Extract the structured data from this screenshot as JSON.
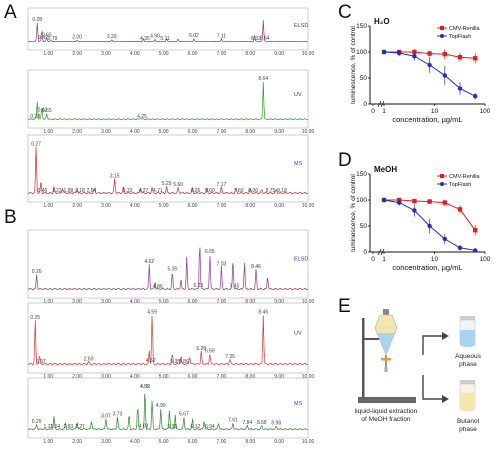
{
  "panels": {
    "A": "A",
    "B": "B",
    "C": "C",
    "D": "D",
    "E": "E"
  },
  "traces": {
    "A": [
      {
        "label": "ELSD",
        "color": "#8b3a8b",
        "peaks": [
          [
            0.62,
            0.8
          ],
          [
            0.78,
            0.45
          ],
          [
            0.95,
            0.15
          ],
          [
            1.1,
            0.05
          ],
          [
            2.0,
            0.06
          ],
          [
            3.2,
            0.08
          ],
          [
            4.3,
            0.1
          ],
          [
            4.7,
            0.1
          ],
          [
            5.1,
            0.12
          ],
          [
            5.5,
            0.1
          ],
          [
            6.05,
            0.12
          ],
          [
            7.0,
            0.1
          ],
          [
            8.15,
            0.25
          ],
          [
            8.45,
            0.9
          ]
        ],
        "peak_labels": [
          {
            "x": 0.62,
            "t": "0.28"
          },
          {
            "x": 0.82,
            "t": "0.42"
          },
          {
            "x": 0.95,
            "t": "0.65"
          },
          {
            "x": 1.15,
            "t": "0.79"
          },
          {
            "x": 2.0,
            "t": "2.00"
          },
          {
            "x": 3.2,
            "t": "3.33"
          },
          {
            "x": 4.35,
            "t": "4.35"
          },
          {
            "x": 4.7,
            "t": "4.90"
          },
          {
            "x": 5.05,
            "t": "5.11"
          },
          {
            "x": 6.05,
            "t": "6.02"
          },
          {
            "x": 7.0,
            "t": "7.11"
          },
          {
            "x": 8.2,
            "t": "8.32"
          },
          {
            "x": 8.5,
            "t": "8.64"
          }
        ]
      },
      {
        "label": "UV",
        "color": "#2e9b2e",
        "peaks": [
          [
            0.62,
            0.45
          ],
          [
            0.78,
            0.3
          ],
          [
            0.95,
            0.15
          ],
          [
            4.2,
            0.03
          ],
          [
            8.45,
            0.95
          ]
        ],
        "peak_labels": [
          {
            "x": 0.55,
            "t": "0.28"
          },
          {
            "x": 0.8,
            "t": "0.42"
          },
          {
            "x": 0.95,
            "t": "0.65"
          },
          {
            "x": 4.25,
            "t": "4.25"
          },
          {
            "x": 8.45,
            "t": "8.64"
          }
        ]
      },
      {
        "label": "MS",
        "color": "#cc2a2a",
        "peaks": [
          [
            0.58,
            0.95
          ],
          [
            0.75,
            0.25
          ],
          [
            1.2,
            0.12
          ],
          [
            1.5,
            0.1
          ],
          [
            2.0,
            0.1
          ],
          [
            2.6,
            0.1
          ],
          [
            3.3,
            0.3
          ],
          [
            3.6,
            0.12
          ],
          [
            4.2,
            0.12
          ],
          [
            4.6,
            0.12
          ],
          [
            5.1,
            0.14
          ],
          [
            5.5,
            0.12
          ],
          [
            6.0,
            0.1
          ],
          [
            6.5,
            0.1
          ],
          [
            7.0,
            0.12
          ],
          [
            7.5,
            0.1
          ],
          [
            8.0,
            0.1
          ],
          [
            8.4,
            0.08
          ],
          [
            8.9,
            0.08
          ]
        ],
        "peak_labels": [
          {
            "x": 0.58,
            "t": "0.27"
          },
          {
            "x": 0.8,
            "t": "0.46"
          },
          {
            "x": 1.3,
            "t": "1.23"
          },
          {
            "x": 1.7,
            "t": "1.88"
          },
          {
            "x": 2.1,
            "t": "2.18"
          },
          {
            "x": 2.5,
            "t": "2.54"
          },
          {
            "x": 3.3,
            "t": "3.15"
          },
          {
            "x": 3.75,
            "t": "3.33"
          },
          {
            "x": 4.3,
            "t": "4.27"
          },
          {
            "x": 4.8,
            "t": "4.71"
          },
          {
            "x": 5.1,
            "t": "5.29"
          },
          {
            "x": 5.5,
            "t": "5.60"
          },
          {
            "x": 6.1,
            "t": "6.26"
          },
          {
            "x": 6.6,
            "t": "6.60"
          },
          {
            "x": 7.0,
            "t": "7.17"
          },
          {
            "x": 7.6,
            "t": "7.60"
          },
          {
            "x": 8.1,
            "t": "8.06"
          },
          {
            "x": 8.7,
            "t": "8.75"
          },
          {
            "x": 9.1,
            "t": "9.18"
          }
        ]
      }
    ],
    "B": [
      {
        "label": "ELSD",
        "color": "#8b3a8b",
        "peaks": [
          [
            0.6,
            0.3
          ],
          [
            4.5,
            0.5
          ],
          [
            4.7,
            0.15
          ],
          [
            5.3,
            0.35
          ],
          [
            5.6,
            0.2
          ],
          [
            5.8,
            0.65
          ],
          [
            6.25,
            0.95
          ],
          [
            6.6,
            0.7
          ],
          [
            7.0,
            0.45
          ],
          [
            7.4,
            0.6
          ],
          [
            7.8,
            0.55
          ],
          [
            8.2,
            0.4
          ],
          [
            8.6,
            0.25
          ]
        ],
        "peak_labels": [
          {
            "x": 0.6,
            "t": "0.26"
          },
          {
            "x": 4.5,
            "t": "4.62"
          },
          {
            "x": 4.8,
            "t": "4.86"
          },
          {
            "x": 5.3,
            "t": "5.35"
          },
          {
            "x": 6.2,
            "t": "6.23"
          },
          {
            "x": 6.6,
            "t": "6.65"
          },
          {
            "x": 7.0,
            "t": "7.03"
          },
          {
            "x": 7.45,
            "t": "7.45"
          },
          {
            "x": 8.2,
            "t": "8.46"
          }
        ]
      },
      {
        "label": "UV",
        "color": "#d13a3a",
        "peaks": [
          [
            0.55,
            0.85
          ],
          [
            0.7,
            0.15
          ],
          [
            2.4,
            0.05
          ],
          [
            4.5,
            0.25
          ],
          [
            4.6,
            0.95
          ],
          [
            5.3,
            0.2
          ],
          [
            5.6,
            0.15
          ],
          [
            5.9,
            0.15
          ],
          [
            6.3,
            0.25
          ],
          [
            6.6,
            0.2
          ],
          [
            7.3,
            0.1
          ],
          [
            8.45,
            0.95
          ]
        ],
        "peak_labels": [
          {
            "x": 0.55,
            "t": "0.25"
          },
          {
            "x": 0.75,
            "t": "0.37"
          },
          {
            "x": 2.4,
            "t": "2.60"
          },
          {
            "x": 4.6,
            "t": "4.59"
          },
          {
            "x": 4.55,
            "t": "4.52"
          },
          {
            "x": 5.4,
            "t": "5.35"
          },
          {
            "x": 5.7,
            "t": "5.86"
          },
          {
            "x": 6.3,
            "t": "6.28"
          },
          {
            "x": 6.6,
            "t": "6.59"
          },
          {
            "x": 7.3,
            "t": "7.35"
          },
          {
            "x": 8.45,
            "t": "8.46"
          }
        ]
      },
      {
        "label": "MS",
        "color": "#2a8a2a",
        "peaks": [
          [
            0.6,
            0.12
          ],
          [
            1.2,
            0.3
          ],
          [
            1.6,
            0.15
          ],
          [
            2.0,
            0.18
          ],
          [
            2.5,
            0.2
          ],
          [
            3.0,
            0.25
          ],
          [
            3.4,
            0.3
          ],
          [
            3.8,
            0.35
          ],
          [
            4.1,
            0.55
          ],
          [
            4.35,
            0.95
          ],
          [
            4.6,
            0.7
          ],
          [
            4.9,
            0.5
          ],
          [
            5.2,
            0.45
          ],
          [
            5.4,
            0.35
          ],
          [
            5.7,
            0.3
          ],
          [
            6.0,
            0.25
          ],
          [
            6.4,
            0.2
          ],
          [
            6.9,
            0.15
          ],
          [
            7.4,
            0.15
          ],
          [
            7.9,
            0.1
          ],
          [
            8.4,
            0.1
          ],
          [
            8.9,
            0.08
          ]
        ],
        "peak_labels": [
          {
            "x": 0.6,
            "t": "0.29"
          },
          {
            "x": 1.0,
            "t": "1.11"
          },
          {
            "x": 1.25,
            "t": "1.64"
          },
          {
            "x": 1.7,
            "t": "1.83"
          },
          {
            "x": 2.1,
            "t": "2.27"
          },
          {
            "x": 3.0,
            "t": "3.07"
          },
          {
            "x": 3.4,
            "t": "3.73"
          },
          {
            "x": 4.35,
            "t": "4.39"
          },
          {
            "x": 4.3,
            "t": "4.03"
          },
          {
            "x": 4.35,
            "t": "4.52"
          },
          {
            "x": 4.9,
            "t": "4.99"
          },
          {
            "x": 5.3,
            "t": "5.36"
          },
          {
            "x": 5.7,
            "t": "5.67"
          },
          {
            "x": 6.1,
            "t": "6.12"
          },
          {
            "x": 6.6,
            "t": "6.94"
          },
          {
            "x": 7.4,
            "t": "7.61"
          },
          {
            "x": 7.9,
            "t": "7.84"
          },
          {
            "x": 8.4,
            "t": "8.58"
          },
          {
            "x": 8.9,
            "t": "8.98"
          }
        ]
      }
    ],
    "x_ticks": [
      "1.00",
      "2.00",
      "3.00",
      "4.00",
      "5.00",
      "6.00",
      "7.00",
      "8.00",
      "9.00",
      "10.00"
    ]
  },
  "chart_data": [
    {
      "type": "line",
      "panel": "C",
      "title": "H₂O",
      "xlabel": "concentration, µg/mL",
      "ylabel": "luminescence, % of control",
      "x_scale": "log",
      "x_ticks": [
        "0",
        "1",
        "10",
        "100"
      ],
      "y_ticks": [
        "0",
        "50",
        "100",
        "150"
      ],
      "ylim": [
        0,
        150
      ],
      "series": [
        {
          "name": "CMV-Renilla",
          "color": "#e02020",
          "marker": "square",
          "x": [
            1,
            2,
            4,
            8,
            16,
            32,
            64
          ],
          "values": [
            100,
            100,
            100,
            97,
            96,
            90,
            88
          ],
          "err": [
            4,
            4,
            6,
            6,
            10,
            8,
            10
          ]
        },
        {
          "name": "TopFlash",
          "color": "#2030b0",
          "marker": "circle",
          "x": [
            1,
            2,
            4,
            8,
            16,
            32,
            64
          ],
          "values": [
            100,
            98,
            92,
            75,
            55,
            30,
            15
          ],
          "err": [
            4,
            6,
            8,
            15,
            18,
            12,
            6
          ]
        }
      ]
    },
    {
      "type": "line",
      "panel": "D",
      "title": "MeOH",
      "xlabel": "concentration, µg/mL",
      "ylabel": "luminescence, % of control",
      "x_scale": "log",
      "x_ticks": [
        "0",
        "1",
        "10",
        "100"
      ],
      "y_ticks": [
        "0",
        "50",
        "100",
        "150"
      ],
      "ylim": [
        0,
        150
      ],
      "series": [
        {
          "name": "CMV-Renilla",
          "color": "#e02020",
          "marker": "square",
          "x": [
            1,
            2,
            4,
            8,
            16,
            32,
            64
          ],
          "values": [
            100,
            100,
            98,
            97,
            95,
            82,
            42
          ],
          "err": [
            4,
            4,
            4,
            5,
            6,
            8,
            10
          ]
        },
        {
          "name": "TopFlash",
          "color": "#2030b0",
          "marker": "circle",
          "x": [
            1,
            2,
            4,
            8,
            16,
            32,
            64
          ],
          "values": [
            100,
            95,
            80,
            50,
            25,
            8,
            3
          ],
          "err": [
            4,
            6,
            12,
            14,
            10,
            5,
            3
          ]
        }
      ]
    }
  ],
  "diagram": {
    "caption_1": "liquid-liquid extraction",
    "caption_2": "of MeOH fraction",
    "aqueous_1": "Aqueous",
    "aqueous_2": "phase",
    "butanol_1": "Butanol",
    "butanol_2": "phase"
  },
  "colors": {
    "liquid_top": "#f4e6b0",
    "liquid_bottom": "#a9d3ee",
    "stand": "#555555"
  }
}
